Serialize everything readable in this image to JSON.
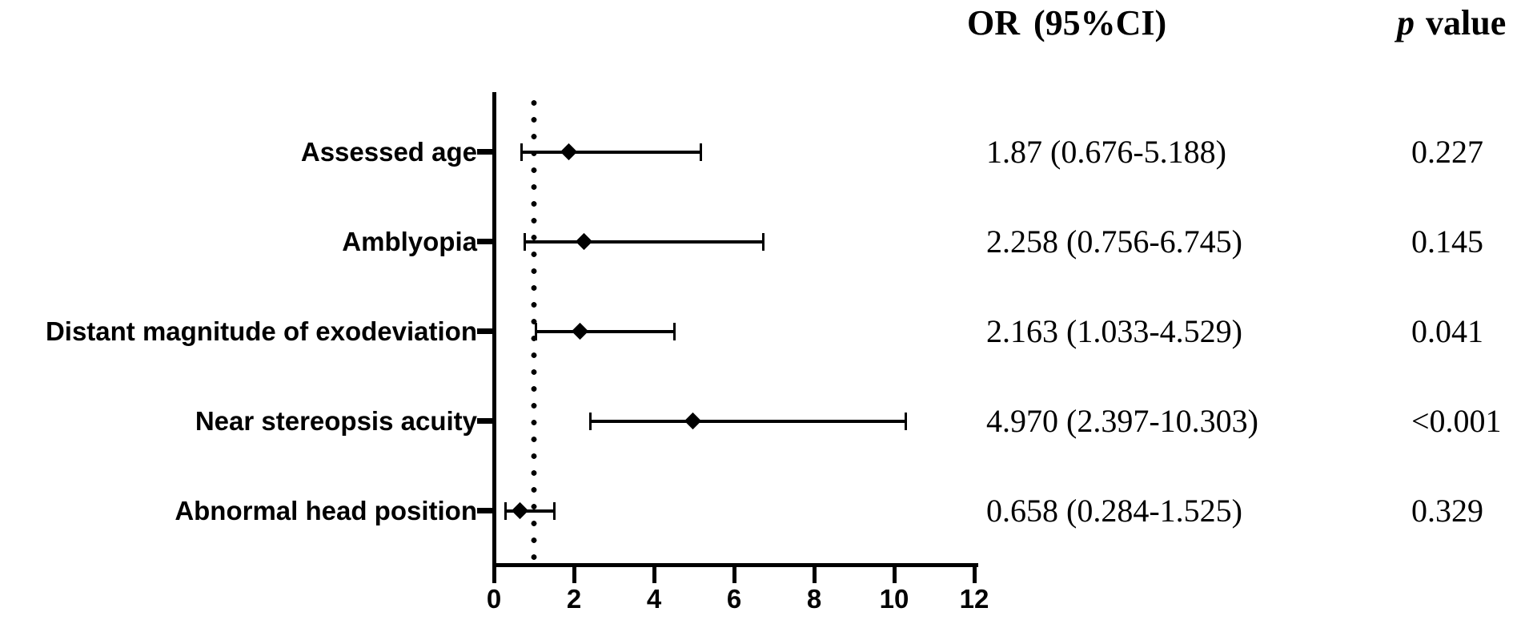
{
  "headers": {
    "or_ci": "OR (95%CI)",
    "p_italic": "p",
    "p_rest": "value"
  },
  "colors": {
    "foreground": "#000000",
    "background": "#ffffff"
  },
  "chart_data": {
    "type": "forest",
    "title": "",
    "xlabel": "",
    "ylabel": "",
    "xlim": [
      0,
      12
    ],
    "x_ticks": [
      0,
      2,
      4,
      6,
      8,
      10,
      12
    ],
    "reference_line_x": 1,
    "reference_line_style": "dotted",
    "grid": false,
    "marker": "diamond",
    "series": [
      {
        "label": "Assessed age",
        "or": 1.87,
        "ci_low": 0.676,
        "ci_high": 5.188,
        "or_ci_text": "1.87 (0.676-5.188)",
        "p_text": "0.227"
      },
      {
        "label": "Amblyopia",
        "or": 2.258,
        "ci_low": 0.756,
        "ci_high": 6.745,
        "or_ci_text": "2.258 (0.756-6.745)",
        "p_text": "0.145"
      },
      {
        "label": "Distant magnitude of exodeviation",
        "or": 2.163,
        "ci_low": 1.033,
        "ci_high": 4.529,
        "or_ci_text": "2.163 (1.033-4.529)",
        "p_text": "0.041"
      },
      {
        "label": "Near stereopsis acuity",
        "or": 4.97,
        "ci_low": 2.397,
        "ci_high": 10.303,
        "or_ci_text": "4.970 (2.397-10.303)",
        "p_text": "<0.001"
      },
      {
        "label": "Abnormal head position",
        "or": 0.658,
        "ci_low": 0.284,
        "ci_high": 1.525,
        "or_ci_text": "0.658 (0.284-1.525)",
        "p_text": "0.329"
      }
    ]
  }
}
